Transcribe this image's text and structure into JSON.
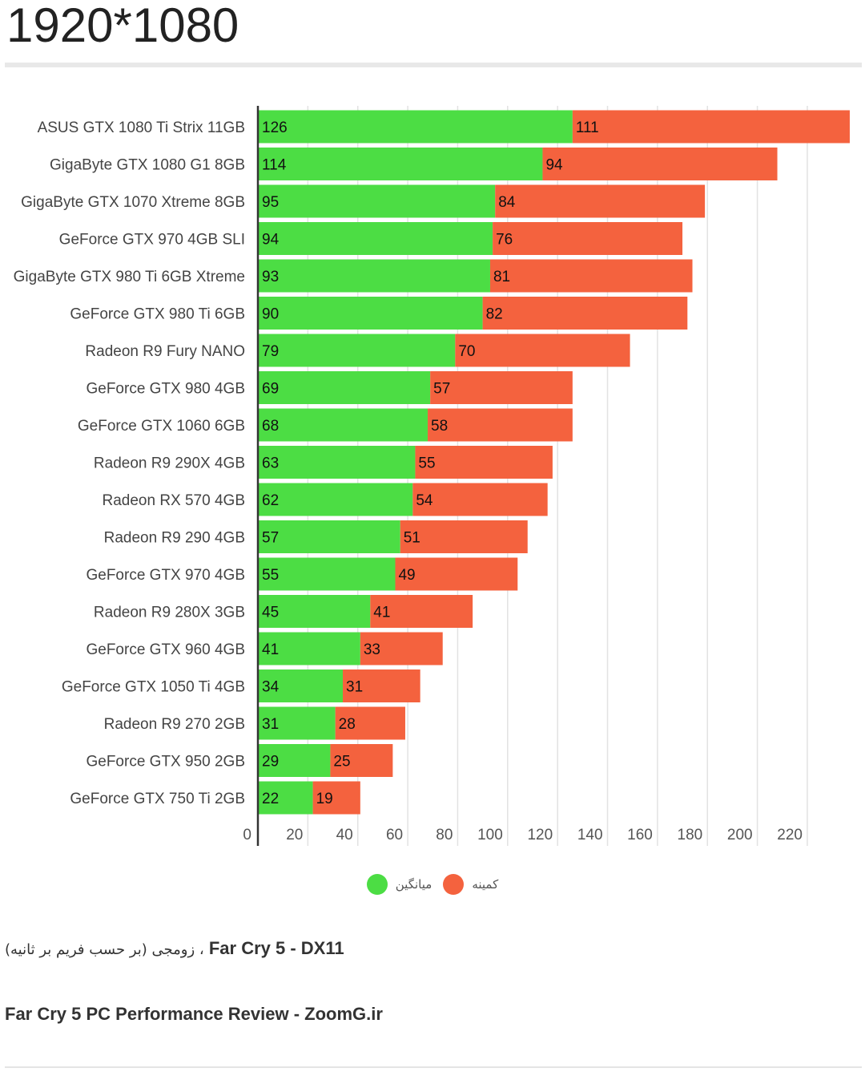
{
  "page": {
    "heading": "1920*1080",
    "caption_title": "Far Cry 5 - DX11",
    "caption_sub": "(بر حسب فریم بر ثانیه) زومجی ،",
    "source": "Far Cry 5 PC Performance Review - ZoomG.ir"
  },
  "chart_data": {
    "type": "bar",
    "orientation": "horizontal",
    "stacked": true,
    "categories": [
      "ASUS GTX 1080 Ti Strix 11GB",
      "GigaByte GTX 1080 G1 8GB",
      "GigaByte GTX 1070 Xtreme 8GB",
      "GeForce GTX 970 4GB SLI",
      "GigaByte GTX 980 Ti 6GB Xtreme",
      "GeForce GTX 980 Ti 6GB",
      "Radeon R9 Fury NANO",
      "GeForce GTX 980 4GB",
      "GeForce GTX 1060 6GB",
      "Radeon R9 290X 4GB",
      "Radeon RX 570 4GB",
      "Radeon R9 290 4GB",
      "GeForce GTX 970 4GB",
      "Radeon R9 280X 3GB",
      "GeForce GTX 960 4GB",
      "GeForce GTX 1050 Ti 4GB",
      "Radeon R9 270 2GB",
      "GeForce GTX 950 2GB",
      "GeForce GTX 750 Ti 2GB"
    ],
    "series": [
      {
        "name": "میانگین",
        "color": "#4cdd44",
        "values": [
          126,
          114,
          95,
          94,
          93,
          90,
          79,
          69,
          68,
          63,
          62,
          57,
          55,
          45,
          41,
          34,
          31,
          29,
          22
        ]
      },
      {
        "name": "کمینه",
        "color": "#f4623e",
        "values": [
          111,
          94,
          84,
          76,
          81,
          82,
          70,
          57,
          58,
          55,
          54,
          51,
          49,
          41,
          33,
          31,
          28,
          25,
          19
        ]
      }
    ],
    "xticks": [
      0,
      20,
      40,
      60,
      80,
      100,
      120,
      140,
      160,
      180,
      200,
      220
    ],
    "xlim": [
      0,
      240
    ],
    "grid": true,
    "legend_position": "bottom"
  }
}
